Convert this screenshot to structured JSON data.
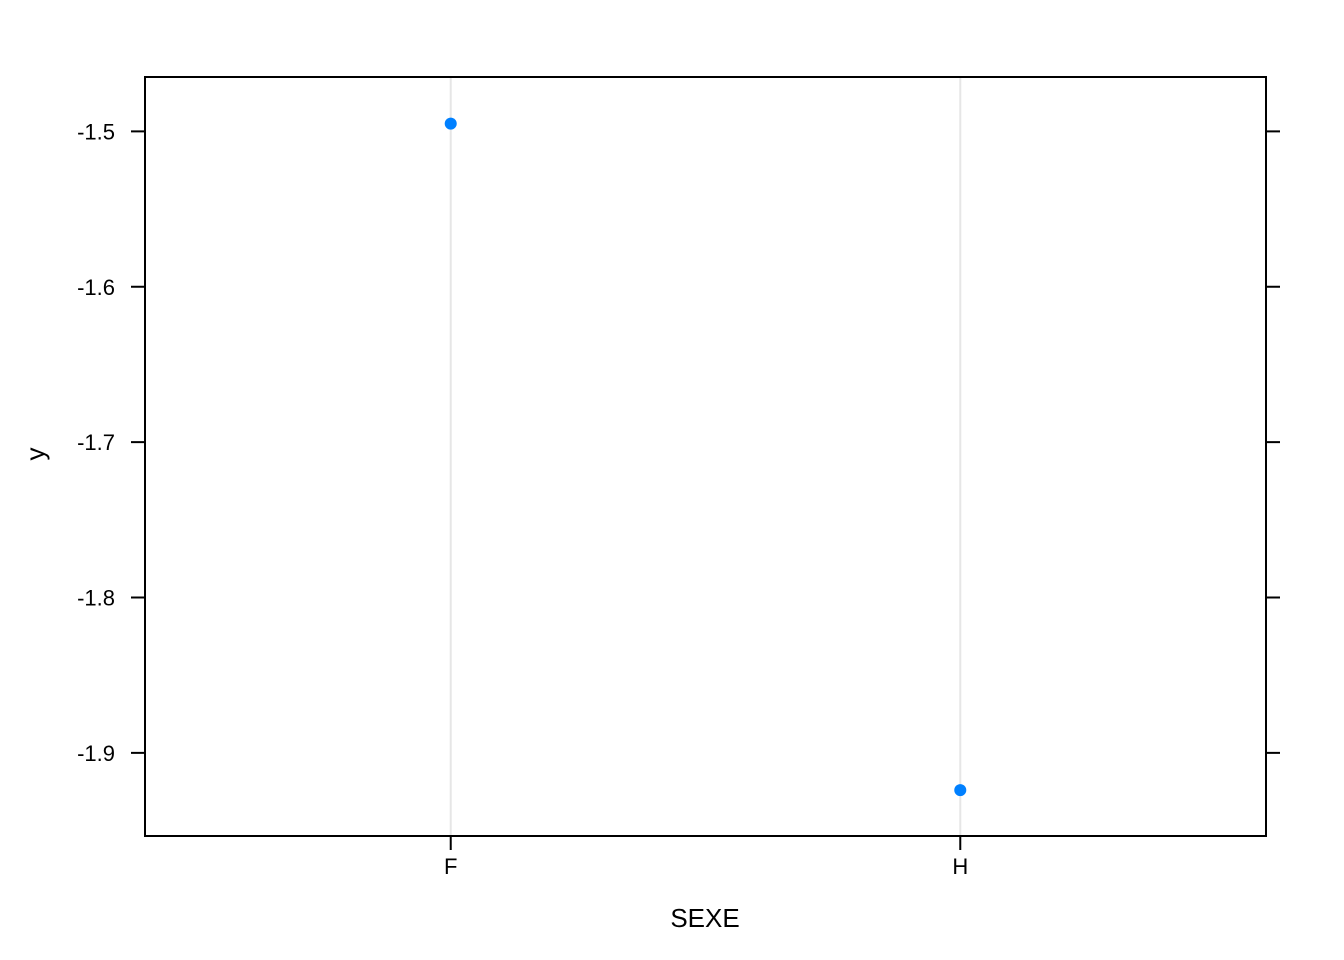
{
  "chart_data": {
    "type": "scatter",
    "xlabel": "SEXE",
    "ylabel": "y",
    "categories": [
      "F",
      "H"
    ],
    "points": [
      {
        "x": "F",
        "y": -1.495
      },
      {
        "x": "H",
        "y": -1.924
      }
    ],
    "ylim": [
      -1.9535,
      -1.465
    ],
    "yticks": [
      -1.5,
      -1.6,
      -1.7,
      -1.8,
      -1.9
    ],
    "ytick_labels": [
      "-1.5",
      "-1.6",
      "-1.7",
      "-1.8",
      "-1.9"
    ],
    "grid": "vertical lines at categories",
    "point_color": "#0080ff",
    "grid_color": "#e6e6e6",
    "frame_color": "#000000"
  }
}
